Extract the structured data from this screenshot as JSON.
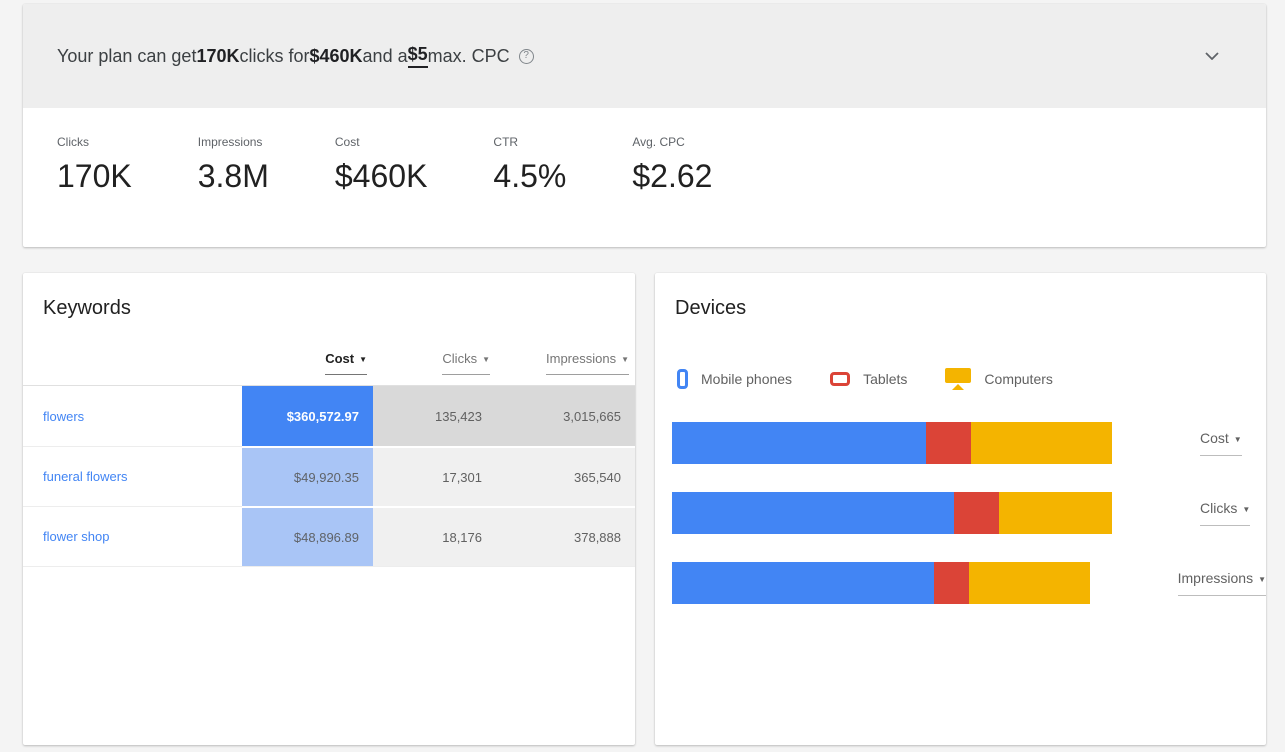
{
  "banner": {
    "prefix": "Your plan can get ",
    "clicks_value": "170K",
    "mid1": " clicks for ",
    "cost_value": "$460K",
    "mid2": " and a ",
    "max_cpc_value": "$5",
    "suffix": " max. CPC"
  },
  "icons": {
    "help": "?",
    "sort_arrow": "▼"
  },
  "metrics": [
    {
      "label": "Clicks",
      "value": "170K"
    },
    {
      "label": "Impressions",
      "value": "3.8M"
    },
    {
      "label": "Cost",
      "value": "$460K"
    },
    {
      "label": "CTR",
      "value": "4.5%"
    },
    {
      "label": "Avg. CPC",
      "value": "$2.62"
    }
  ],
  "keywords_card": {
    "title": "Keywords",
    "columns": {
      "cost": "Cost",
      "clicks": "Clicks",
      "impressions": "Impressions"
    },
    "rows": [
      {
        "keyword": "flowers",
        "cost": "$360,572.97",
        "clicks": "135,423",
        "impressions": "3,015,665",
        "cost_bg": "#4285f4",
        "cost_fg": "#ffffff",
        "metric_bg": "#d9d9d9"
      },
      {
        "keyword": "funeral flowers",
        "cost": "$49,920.35",
        "clicks": "17,301",
        "impressions": "365,540",
        "cost_bg": "#a9c5f6",
        "cost_fg": "#5f6368",
        "metric_bg": "#f0f0f0"
      },
      {
        "keyword": "flower shop",
        "cost": "$48,896.89",
        "clicks": "18,176",
        "impressions": "378,888",
        "cost_bg": "#a9c5f6",
        "cost_fg": "#5f6368",
        "metric_bg": "#f0f0f0"
      }
    ]
  },
  "devices_card": {
    "title": "Devices",
    "legend": [
      {
        "label": "Mobile phones",
        "color": "#4285f4"
      },
      {
        "label": "Tablets",
        "color": "#db4437"
      },
      {
        "label": "Computers",
        "color": "#f4b400"
      }
    ],
    "bars": [
      {
        "label": "Cost",
        "mobile_pct": 57.7,
        "tablets_pct": 10.2,
        "computers_pct": 32.1
      },
      {
        "label": "Clicks",
        "mobile_pct": 64.1,
        "tablets_pct": 10.2,
        "computers_pct": 25.7
      },
      {
        "label": "Impressions",
        "mobile_pct": 62.7,
        "tablets_pct": 8.4,
        "computers_pct": 28.9
      }
    ]
  },
  "chart_data": {
    "type": "bar",
    "orientation": "horizontal_stacked",
    "categories": [
      "Cost",
      "Clicks",
      "Impressions"
    ],
    "series": [
      {
        "name": "Mobile phones",
        "values": [
          57.7,
          64.1,
          62.7
        ],
        "color": "#4285f4"
      },
      {
        "name": "Tablets",
        "values": [
          10.2,
          10.2,
          8.4
        ],
        "color": "#db4437"
      },
      {
        "name": "Computers",
        "values": [
          32.1,
          25.7,
          28.9
        ],
        "color": "#f4b400"
      }
    ],
    "unit": "percent share of bar width",
    "legend_position": "top"
  },
  "colors": {
    "accent_blue": "#4285f4",
    "red": "#db4437",
    "yellow": "#f4b400",
    "banner_bg": "#eeeeee",
    "page_bg": "#f4f4f4",
    "heat_row1_gray": "#d9d9d9",
    "heat_row_light_gray": "#f0f0f0",
    "heat_cost_light_blue": "#a9c5f6"
  }
}
